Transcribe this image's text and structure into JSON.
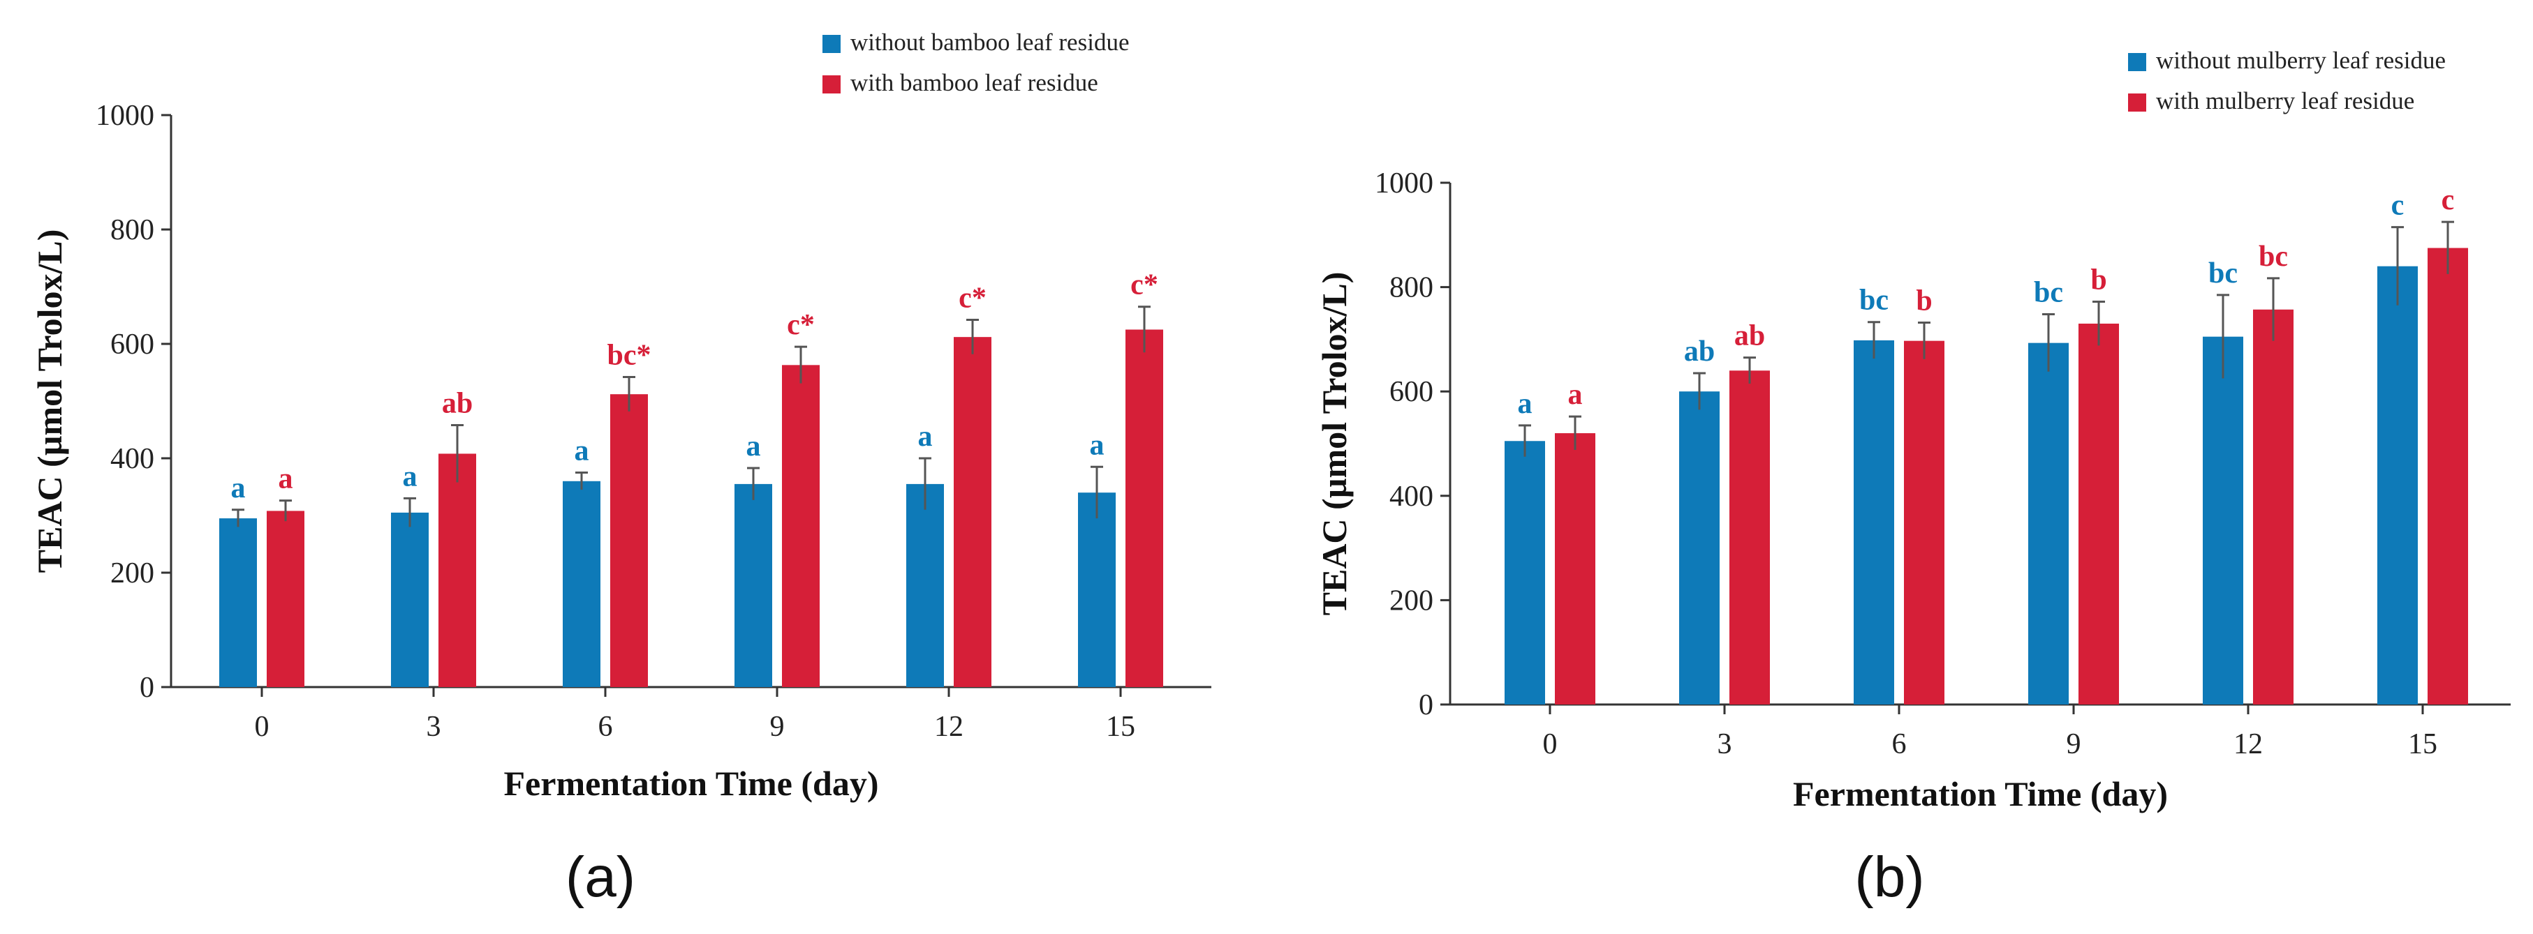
{
  "colors": {
    "series_a": "#0e7ab8",
    "series_b": "#d61f38",
    "axis": "#333333",
    "error": "#555555"
  },
  "chart_data": [
    {
      "panel_label": "(a)",
      "type": "bar",
      "xlabel": "Fermentation Time (day)",
      "ylabel": "TEAC (µmol Trolox/L)",
      "categories": [
        "0",
        "3",
        "6",
        "9",
        "12",
        "15"
      ],
      "ylim": [
        0,
        1000
      ],
      "yticks": [
        0,
        200,
        400,
        600,
        800,
        1000
      ],
      "ytick_labels": [
        "0",
        "200",
        "400",
        "600",
        "800",
        "1000"
      ],
      "legend_position": "top-right",
      "series": [
        {
          "name": "without bamboo leaf residue",
          "color": "#0e7ab8",
          "values": [
            295,
            305,
            360,
            355,
            355,
            340
          ],
          "errors": [
            15,
            25,
            15,
            28,
            45,
            45
          ],
          "labels": [
            "a",
            "a",
            "a",
            "a",
            "a",
            "a"
          ]
        },
        {
          "name": "with bamboo leaf residue",
          "color": "#d61f38",
          "values": [
            308,
            408,
            512,
            563,
            612,
            625
          ],
          "errors": [
            18,
            50,
            30,
            32,
            30,
            40
          ],
          "labels": [
            "a",
            "ab",
            "bc*",
            "c*",
            "c*",
            "c*"
          ]
        }
      ]
    },
    {
      "panel_label": "(b)",
      "type": "bar",
      "xlabel": "Fermentation Time (day)",
      "ylabel": "TEAC (µmol Trolox/L)",
      "categories": [
        "0",
        "3",
        "6",
        "9",
        "12",
        "15"
      ],
      "ylim": [
        0,
        1000
      ],
      "yticks": [
        0,
        200,
        400,
        600,
        800,
        1000
      ],
      "ytick_labels": [
        "0",
        "200",
        "400",
        "600",
        "800",
        "1000"
      ],
      "legend_position": "top-right",
      "series": [
        {
          "name": "without mulberry leaf residue",
          "color": "#0e7ab8",
          "values": [
            505,
            600,
            698,
            693,
            705,
            840
          ],
          "errors": [
            30,
            35,
            35,
            55,
            80,
            75
          ],
          "labels": [
            "a",
            "ab",
            "bc",
            "bc",
            "bc",
            "c"
          ]
        },
        {
          "name": "with mulberry leaf residue",
          "color": "#d61f38",
          "values": [
            520,
            640,
            697,
            730,
            757,
            875
          ],
          "errors": [
            32,
            25,
            35,
            42,
            60,
            50
          ],
          "labels": [
            "a",
            "ab",
            "b",
            "b",
            "bc",
            "c"
          ]
        }
      ]
    }
  ]
}
